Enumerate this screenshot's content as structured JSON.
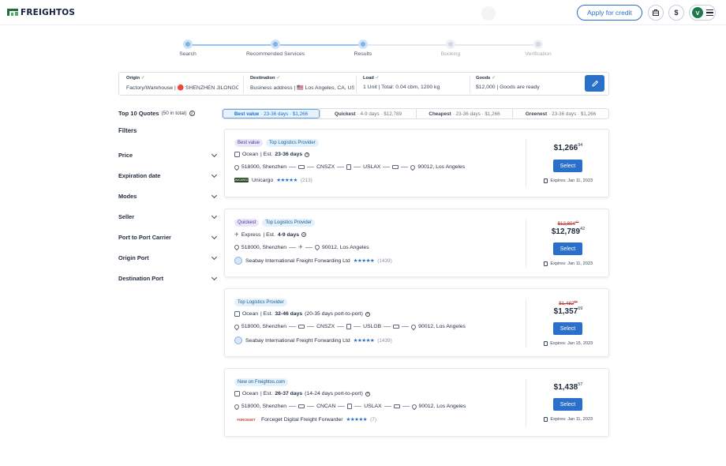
{
  "header": {
    "logo_text": "FREIGHTOS",
    "apply_credit": "Apply for credit",
    "dollar_label": "$",
    "avatar_letter": "V"
  },
  "stepper": {
    "steps": [
      {
        "label": "Search",
        "state": "done"
      },
      {
        "label": "Recommended Services",
        "state": "done"
      },
      {
        "label": "Results",
        "state": "done"
      },
      {
        "label": "Booking",
        "state": "todo"
      },
      {
        "label": "Verification",
        "state": "todo"
      }
    ]
  },
  "search": {
    "origin": {
      "title": "Origin",
      "value": "Factory/Warehouse | 🔴 SHENZHEN JILONGCH..."
    },
    "destination": {
      "title": "Destination",
      "value": "Business address | 🇺🇸 Los Angeles, CA, USA"
    },
    "load": {
      "title": "Load",
      "value": "1 Unit | Total: 0.04 cbm, 1200 kg"
    },
    "goods": {
      "title": "Goods",
      "value": "$12,000 | Goods are ready"
    }
  },
  "results": {
    "title": "Top 10 Quotes",
    "count": "(50 in total)"
  },
  "sort_tabs": [
    {
      "name": "Best value",
      "detail": "· 23-36 days · $1,266"
    },
    {
      "name": "Quickest",
      "detail": "· 4-9 days · $12,789"
    },
    {
      "name": "Cheapest",
      "detail": "· 23-36 days · $1,266"
    },
    {
      "name": "Greenest",
      "detail": "· 23-36 days · $1,266"
    }
  ],
  "filters": {
    "title": "Filters",
    "items": [
      "Price",
      "Expiration date",
      "Modes",
      "Seller",
      "Port to Port Carrier",
      "Origin Port",
      "Destination Port"
    ]
  },
  "quotes": [
    {
      "badges": [
        "Best value",
        "Top Logistics Provider"
      ],
      "mode": "Ocean",
      "est_prefix": "| Est.",
      "est_days": "23-36 days",
      "est_extra": "",
      "origin": "518000, Shenzhen",
      "port_a": "CNSZX",
      "port_b": "USLAX",
      "dest": "90012, Los Angeles",
      "carrier": "Unicargo",
      "stars": "★★★★★",
      "reviews": "(213)",
      "old_price": "",
      "old_cents": "",
      "price": "$1,266",
      "cents": "94",
      "select": "Select",
      "expires": "Expires: Jan 11, 2023"
    },
    {
      "badges": [
        "Quickest",
        "Top Logistics Provider"
      ],
      "mode": "Express",
      "est_prefix": "| Est.",
      "est_days": "4-9 days",
      "est_extra": "",
      "origin": "518000, Shenzhen",
      "port_a": "",
      "port_b": "",
      "dest": "90012, Los Angeles",
      "carrier": "Seabay International Freight Forwarding Ltd",
      "stars": "★★★★★",
      "reviews": "(1439)",
      "old_price": "$12,804",
      "old_cents": "42",
      "price": "$12,789",
      "cents": "42",
      "select": "Select",
      "expires": "Expires: Jan 11, 2023"
    },
    {
      "badges": [
        "Top Logistics Provider"
      ],
      "mode": "Ocean",
      "est_prefix": "| Est.",
      "est_days": "32-46 days",
      "est_extra": "(20-35 days port-to-port)",
      "origin": "518000, Shenzhen",
      "port_a": "CNSZX",
      "port_b": "USLGB",
      "dest": "90012, Los Angeles",
      "carrier": "Seabay International Freight Forwarding Ltd",
      "stars": "★★★★★",
      "reviews": "(1439)",
      "old_price": "$1,482",
      "old_cents": "69",
      "price": "$1,357",
      "cents": "69",
      "select": "Select",
      "expires": "Expires: Jan 15, 2023"
    },
    {
      "badges": [
        "New on Freightos.com"
      ],
      "mode": "Ocean",
      "est_prefix": "| Est.",
      "est_days": "26-37 days",
      "est_extra": "(14-24 days port-to-port)",
      "origin": "518000, Shenzhen",
      "port_a": "CNCAN",
      "port_b": "USLAX",
      "dest": "90012, Los Angeles",
      "carrier": "Forceget Digital Freight Forwarder",
      "stars": "★★★★★",
      "reviews": "(7)",
      "old_price": "",
      "old_cents": "",
      "price": "$1,438",
      "cents": "57",
      "select": "Select",
      "expires": "Expires: Jan 11, 2023"
    }
  ],
  "colors": {
    "accent": "#2a6fc9",
    "brand": "#1d6f3c",
    "badge_purple": "#ece6fb",
    "badge_blue": "#e2f1fb",
    "strike_red": "#b33030"
  }
}
